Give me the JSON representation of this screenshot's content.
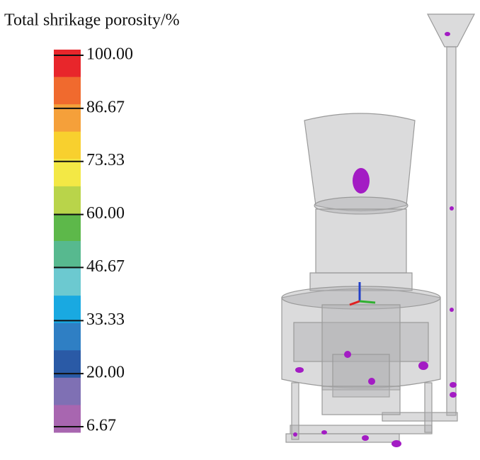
{
  "legend": {
    "title": "Total shrikage porosity/%",
    "ticks": [
      {
        "value": 100,
        "label": "100.00"
      },
      {
        "value": 86.67,
        "label": "86.67"
      },
      {
        "value": 73.33,
        "label": "73.33"
      },
      {
        "value": 60,
        "label": "60.00"
      },
      {
        "value": 46.67,
        "label": "46.67"
      },
      {
        "value": 33.33,
        "label": "33.33"
      },
      {
        "value": 20,
        "label": "20.00"
      },
      {
        "value": 6.67,
        "label": "6.67"
      }
    ],
    "colors": [
      "#e8262b",
      "#f06a2e",
      "#f5a03a",
      "#f8d02e",
      "#f3e845",
      "#b9d44a",
      "#5db84a",
      "#57b98f",
      "#6cc9d0",
      "#19a9e1",
      "#2f7fc4",
      "#2a5aa6",
      "#7f70b4",
      "#a866b0"
    ]
  }
}
